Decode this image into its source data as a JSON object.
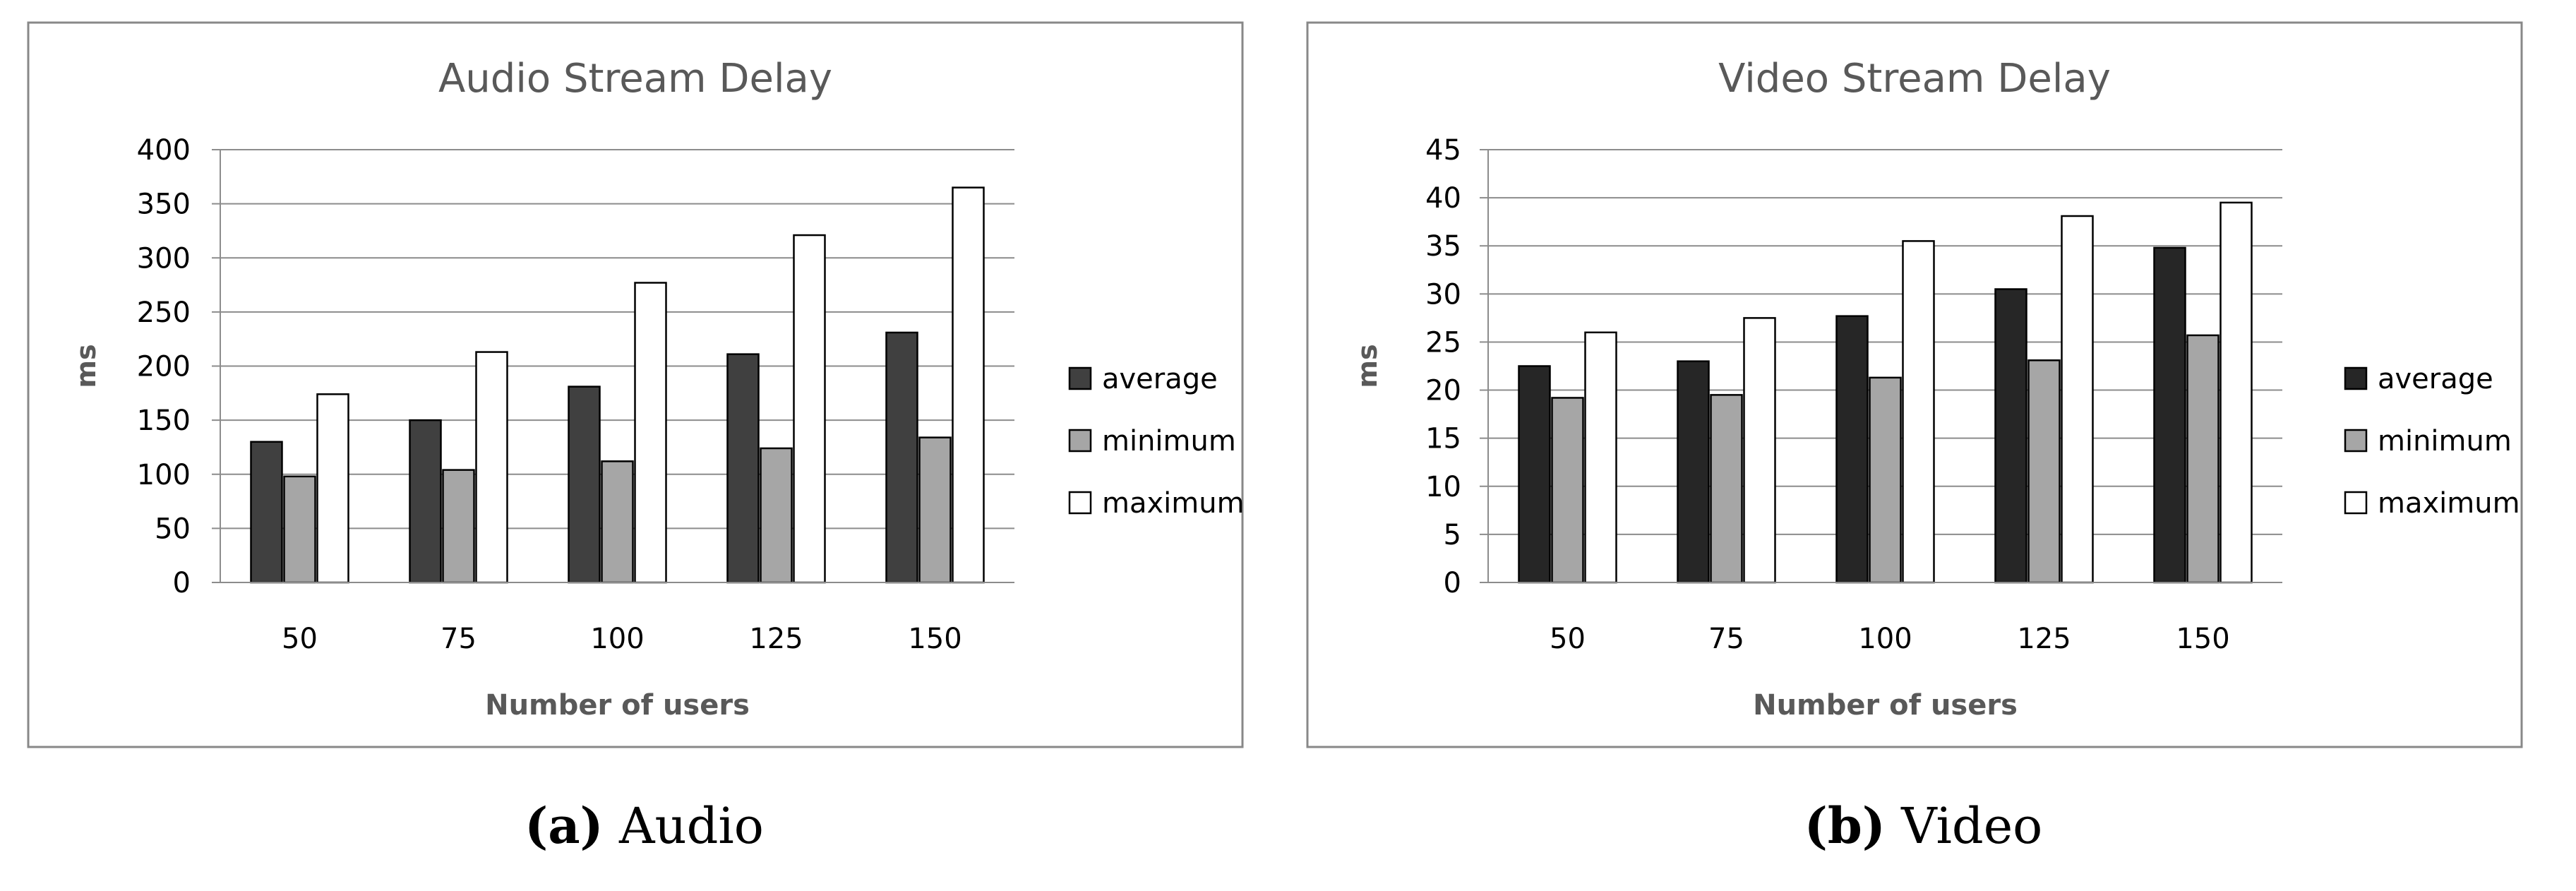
{
  "chart_data": [
    {
      "type": "bar",
      "title": "Audio Stream Delay",
      "xlabel": "Number of users",
      "ylabel": "ms",
      "categories": [
        "50",
        "75",
        "100",
        "125",
        "150"
      ],
      "ylim": [
        0,
        400
      ],
      "yticks": [
        "0",
        "50",
        "100",
        "150",
        "200",
        "250",
        "300",
        "350",
        "400"
      ],
      "grid": true,
      "legend_position": "right",
      "series": [
        {
          "name": "average",
          "values": [
            130,
            150,
            181,
            211,
            231
          ],
          "color": "#404040"
        },
        {
          "name": "minimum",
          "values": [
            98,
            104,
            112,
            124,
            134
          ],
          "color": "#a6a6a6"
        },
        {
          "name": "maximum",
          "values": [
            174,
            213,
            277,
            321,
            365
          ],
          "color": "#ffffff"
        }
      ],
      "caption": {
        "label": "(a)",
        "text": " Audio"
      }
    },
    {
      "type": "bar",
      "title": "Video Stream Delay",
      "xlabel": "Number of users",
      "ylabel": "ms",
      "categories": [
        "50",
        "75",
        "100",
        "125",
        "150"
      ],
      "ylim": [
        0,
        45
      ],
      "yticks": [
        "0",
        "5",
        "10",
        "15",
        "20",
        "25",
        "30",
        "35",
        "40",
        "45"
      ],
      "grid": true,
      "legend_position": "right",
      "series": [
        {
          "name": "average",
          "values": [
            22.5,
            23,
            27.7,
            30.5,
            34.8
          ],
          "color": "#262626"
        },
        {
          "name": "minimum",
          "values": [
            19.2,
            19.5,
            21.3,
            23.1,
            25.7
          ],
          "color": "#a6a6a6"
        },
        {
          "name": "maximum",
          "values": [
            26,
            27.5,
            35.5,
            38.1,
            39.5
          ],
          "color": "#ffffff"
        }
      ],
      "caption": {
        "label": "(b)",
        "text": " Video"
      }
    }
  ]
}
